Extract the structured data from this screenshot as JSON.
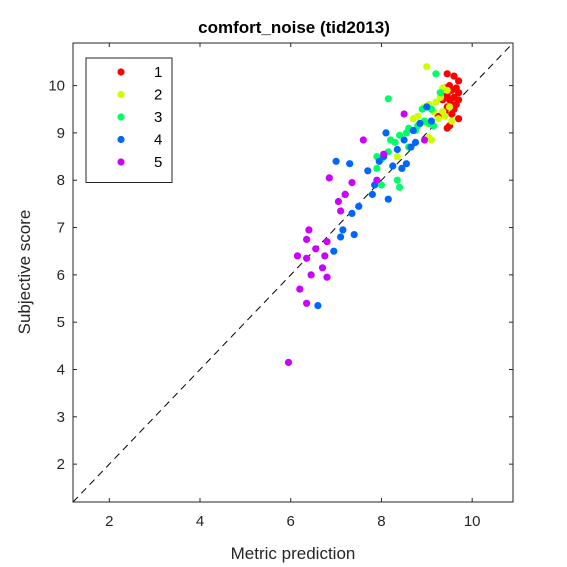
{
  "chart_data": {
    "type": "scatter",
    "title": "comfort_noise (tid2013)",
    "xlabel": "Metric prediction",
    "ylabel": "Subjective score",
    "xlim": [
      1.2,
      10.9
    ],
    "ylim": [
      1.2,
      10.9
    ],
    "xticks": [
      "2",
      "4",
      "6",
      "8",
      "10"
    ],
    "yticks": [
      "2",
      "3",
      "4",
      "5",
      "6",
      "7",
      "8",
      "9",
      "10"
    ],
    "legend_position": "top-left",
    "reference_line": "y = x (dashed)",
    "series": [
      {
        "name": "1",
        "color": "#ff0000",
        "points": [
          [
            9.45,
            10.25
          ],
          [
            9.6,
            10.2
          ],
          [
            9.7,
            10.1
          ],
          [
            9.5,
            10.0
          ],
          [
            9.65,
            9.95
          ],
          [
            9.4,
            9.95
          ],
          [
            9.55,
            9.9
          ],
          [
            9.3,
            9.85
          ],
          [
            9.7,
            9.85
          ],
          [
            9.45,
            9.8
          ],
          [
            9.6,
            9.75
          ],
          [
            9.5,
            9.7
          ],
          [
            9.7,
            9.7
          ],
          [
            9.35,
            9.7
          ],
          [
            9.55,
            9.6
          ],
          [
            9.65,
            9.6
          ],
          [
            9.45,
            9.55
          ],
          [
            9.6,
            9.5
          ],
          [
            9.4,
            9.45
          ],
          [
            9.55,
            9.4
          ],
          [
            9.7,
            9.3
          ],
          [
            9.5,
            9.15
          ],
          [
            9.45,
            9.1
          ],
          [
            9.25,
            9.35
          ]
        ]
      },
      {
        "name": "2",
        "color": "#ccff00",
        "points": [
          [
            9.0,
            10.4
          ],
          [
            9.35,
            9.95
          ],
          [
            9.45,
            9.9
          ],
          [
            9.3,
            9.75
          ],
          [
            9.2,
            9.65
          ],
          [
            9.05,
            9.6
          ],
          [
            9.5,
            9.55
          ],
          [
            8.95,
            9.55
          ],
          [
            9.15,
            9.45
          ],
          [
            9.35,
            9.45
          ],
          [
            9.4,
            9.35
          ],
          [
            9.25,
            9.3
          ],
          [
            8.8,
            9.35
          ],
          [
            8.7,
            9.3
          ],
          [
            9.55,
            9.25
          ],
          [
            9.0,
            9.2
          ],
          [
            9.1,
            8.85
          ],
          [
            9.05,
            8.9
          ],
          [
            8.35,
            8.5
          ]
        ]
      },
      {
        "name": "3",
        "color": "#00ff66",
        "points": [
          [
            8.15,
            9.72
          ],
          [
            9.2,
            10.25
          ],
          [
            9.3,
            9.85
          ],
          [
            8.9,
            9.5
          ],
          [
            9.1,
            9.5
          ],
          [
            8.95,
            9.25
          ],
          [
            9.05,
            9.2
          ],
          [
            8.8,
            9.15
          ],
          [
            9.15,
            9.15
          ],
          [
            8.6,
            9.1
          ],
          [
            8.75,
            9.05
          ],
          [
            8.55,
            9.0
          ],
          [
            8.4,
            8.95
          ],
          [
            8.2,
            8.85
          ],
          [
            8.3,
            8.8
          ],
          [
            8.6,
            8.7
          ],
          [
            7.9,
            8.5
          ],
          [
            8.0,
            8.45
          ],
          [
            7.9,
            8.25
          ],
          [
            8.35,
            8.0
          ],
          [
            8.4,
            7.85
          ],
          [
            8.0,
            7.9
          ],
          [
            8.15,
            8.6
          ]
        ]
      },
      {
        "name": "4",
        "color": "#0066ff",
        "points": [
          [
            9.0,
            9.55
          ],
          [
            9.1,
            9.25
          ],
          [
            8.85,
            9.2
          ],
          [
            8.7,
            9.05
          ],
          [
            8.1,
            9.0
          ],
          [
            8.5,
            8.85
          ],
          [
            8.75,
            8.8
          ],
          [
            8.65,
            8.7
          ],
          [
            8.35,
            8.65
          ],
          [
            8.05,
            8.5
          ],
          [
            7.95,
            8.4
          ],
          [
            8.25,
            8.3
          ],
          [
            8.55,
            8.35
          ],
          [
            8.45,
            8.25
          ],
          [
            7.7,
            8.2
          ],
          [
            7.3,
            8.35
          ],
          [
            7.0,
            8.4
          ],
          [
            7.85,
            7.9
          ],
          [
            7.8,
            7.7
          ],
          [
            7.2,
            7.7
          ],
          [
            8.15,
            7.6
          ],
          [
            7.5,
            7.45
          ],
          [
            7.35,
            7.3
          ],
          [
            7.15,
            6.95
          ],
          [
            7.4,
            6.85
          ],
          [
            7.1,
            6.8
          ],
          [
            6.95,
            6.5
          ],
          [
            6.6,
            5.35
          ]
        ]
      },
      {
        "name": "5",
        "color": "#cc00ff",
        "points": [
          [
            8.95,
            8.85
          ],
          [
            8.5,
            9.4
          ],
          [
            7.6,
            8.85
          ],
          [
            8.05,
            8.55
          ],
          [
            7.9,
            8.0
          ],
          [
            7.35,
            7.95
          ],
          [
            6.85,
            8.05
          ],
          [
            7.05,
            7.55
          ],
          [
            7.1,
            7.35
          ],
          [
            7.2,
            7.7
          ],
          [
            6.4,
            6.95
          ],
          [
            6.35,
            6.75
          ],
          [
            6.8,
            6.7
          ],
          [
            6.55,
            6.55
          ],
          [
            6.15,
            6.4
          ],
          [
            6.75,
            6.4
          ],
          [
            6.35,
            6.35
          ],
          [
            6.7,
            6.15
          ],
          [
            6.45,
            6.0
          ],
          [
            6.8,
            5.95
          ],
          [
            6.2,
            5.7
          ],
          [
            6.35,
            5.4
          ],
          [
            5.95,
            4.15
          ]
        ]
      }
    ]
  }
}
